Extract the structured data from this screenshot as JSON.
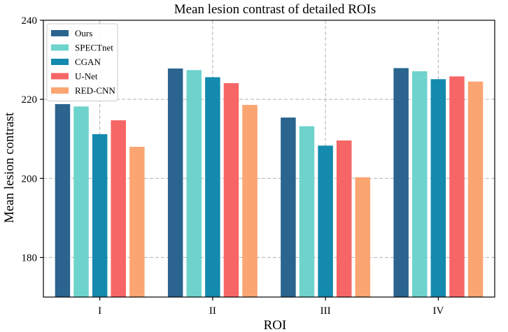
{
  "chart_data": {
    "type": "bar",
    "title": "Mean lesion contrast of detailed ROIs",
    "xlabel": "ROI",
    "ylabel": "Mean lesion contrast",
    "categories": [
      "I",
      "II",
      "III",
      "IV"
    ],
    "ylim": [
      170,
      240
    ],
    "yticks": [
      180,
      200,
      220,
      240
    ],
    "grid": true,
    "legend_position": "top-left",
    "series": [
      {
        "name": "Ours",
        "color": "#2a648f",
        "values": [
          218.8,
          227.8,
          215.4,
          227.9
        ]
      },
      {
        "name": "SPECTnet",
        "color": "#6dd3cc",
        "values": [
          218.2,
          227.4,
          213.2,
          227.1
        ]
      },
      {
        "name": "CGAN",
        "color": "#138aae",
        "values": [
          211.2,
          225.6,
          208.3,
          225.1
        ]
      },
      {
        "name": "U-Net",
        "color": "#f76666",
        "values": [
          214.7,
          224.1,
          209.6,
          225.8
        ]
      },
      {
        "name": "RED-CNN",
        "color": "#fba572",
        "values": [
          208.0,
          218.6,
          200.3,
          224.5
        ]
      }
    ]
  }
}
